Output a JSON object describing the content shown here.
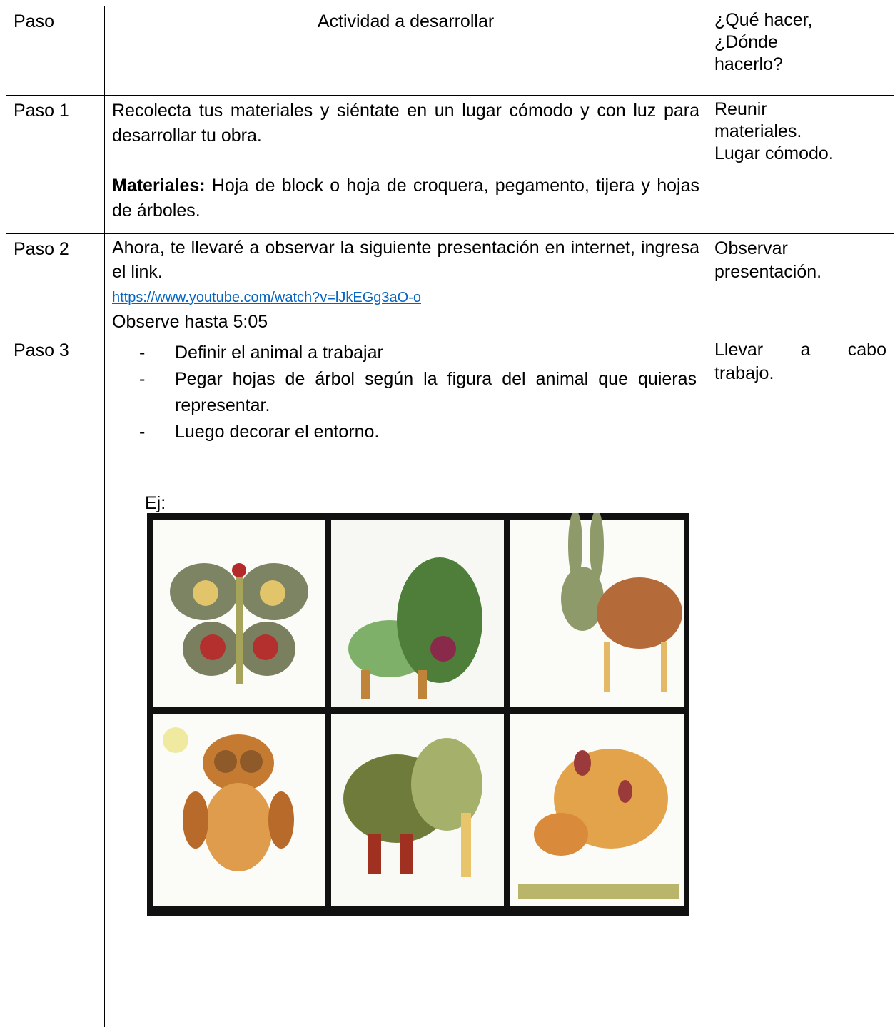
{
  "table": {
    "header": {
      "step": "Paso",
      "activity": "Actividad a desarrollar",
      "action": [
        "¿Qué hacer,",
        "¿Dónde",
        "hacerlo?"
      ]
    },
    "rows": [
      {
        "step": "Paso 1",
        "activity": "Recolecta tus materiales y siéntate en un lugar cómodo y con luz para desarrollar tu obra.",
        "materials_label": "Materiales:",
        "materials": "Hoja de block o hoja de croquera, pegamento, tijera y hojas de árboles.",
        "action": [
          "Reunir",
          "materiales.",
          "Lugar cómodo."
        ]
      },
      {
        "step": "Paso 2",
        "activity": "Ahora, te llevaré a observar la siguiente presentación en internet, ingresa el link.",
        "link": "https://www.youtube.com/watch?v=lJkEGg3aO-o",
        "note": "Observe hasta 5:05",
        "action": [
          "Observar",
          "presentación."
        ]
      },
      {
        "step": "Paso 3",
        "bullets": [
          "Definir el animal a trabajar",
          "Pegar hojas de árbol según la figura del animal que quieras representar.",
          "Luego decorar el entorno."
        ],
        "example_label": "Ej:",
        "action": [
          "Llevar a cabo",
          "trabajo."
        ]
      }
    ]
  }
}
